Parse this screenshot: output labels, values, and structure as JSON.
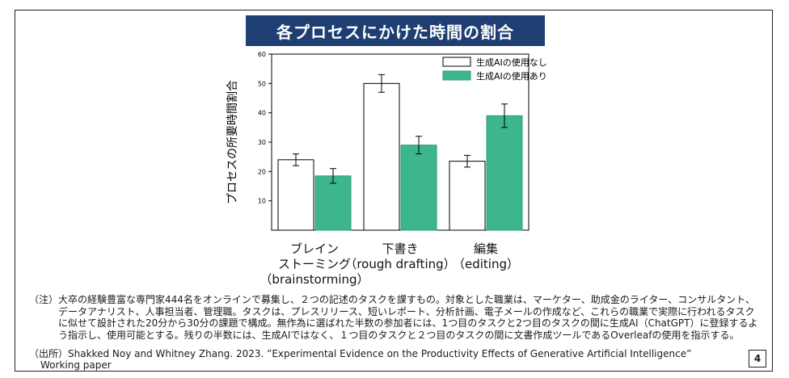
{
  "title": "各プロセスにかけた時間の割合",
  "chart_data": {
    "type": "bar",
    "ylabel": "プロセスの所要時間割合",
    "ylim": [
      0,
      60
    ],
    "yticks": [
      10,
      20,
      30,
      40,
      50,
      60
    ],
    "categories": [
      {
        "lines": [
          "ブレイン",
          "ストーミング",
          "（brainstorming）"
        ]
      },
      {
        "lines": [
          "下書き",
          "（rough drafting）"
        ]
      },
      {
        "lines": [
          "編集",
          "（editing）"
        ]
      }
    ],
    "series": [
      {
        "name": "生成AIの使用なし",
        "color": "#ffffff",
        "values": [
          24,
          50,
          23.5
        ],
        "errors": [
          2,
          3,
          2
        ]
      },
      {
        "name": "生成AIの使用あり",
        "color": "#3db58f",
        "values": [
          18.5,
          29,
          39
        ],
        "errors": [
          2.5,
          3,
          4
        ]
      }
    ],
    "legend_position": "top-right",
    "grid": false
  },
  "note": {
    "label": "（注）",
    "text": "大卒の経験豊富な専門家444名をオンラインで募集し、２つの記述のタスクを課すもの。対象とした職業は、マーケター、助成金のライター、コンサルタント、データアナリスト、人事担当者、管理職。タスクは、プレスリリース、短いレポート、分析計画、電子メールの作成など、これらの職業で実際に行われるタスクに似せて設計された20分から30分の課題で構成。無作為に選ばれた半数の参加者には、1つ目のタスクと2つ目のタスクの間に生成AI（ChatGPT）に登録するよう指示し、使用可能とする。残りの半数には、生成AIではなく、１つ目のタスクと２つ目のタスクの間に文書作成ツールであるOverleafの使用を指示する。"
  },
  "source": {
    "label": "（出所）",
    "line1": "Shakked Noy and Whitney Zhang. 2023. ”Experimental Evidence on the Productivity Effects of Generative Artificial Intelligence”",
    "line2": "Working paper"
  },
  "page_number": "4"
}
